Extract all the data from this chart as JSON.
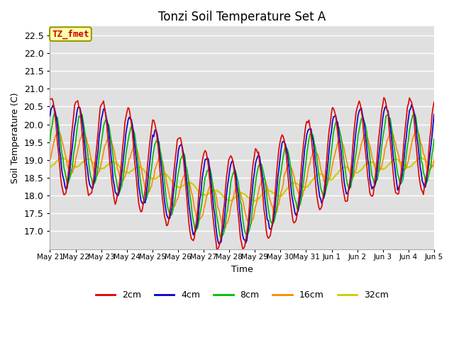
{
  "title": "Tonzi Soil Temperature Set A",
  "xlabel": "Time",
  "ylabel": "Soil Temperature (C)",
  "ylim": [
    16.5,
    22.75
  ],
  "yticks": [
    17.0,
    17.5,
    18.0,
    18.5,
    19.0,
    19.5,
    20.0,
    20.5,
    21.0,
    21.5,
    22.0,
    22.5
  ],
  "colors": {
    "2cm": "#dd0000",
    "4cm": "#0000cc",
    "8cm": "#00bb00",
    "16cm": "#ff8800",
    "32cm": "#cccc00"
  },
  "bg_color": "#e0e0e0",
  "annotation_text": "TZ_fmet",
  "annotation_bg": "#ffffaa",
  "annotation_border": "#999900",
  "annotation_text_color": "#cc0000",
  "n_points": 360,
  "legend_labels": [
    "2cm",
    "4cm",
    "8cm",
    "16cm",
    "32cm"
  ]
}
